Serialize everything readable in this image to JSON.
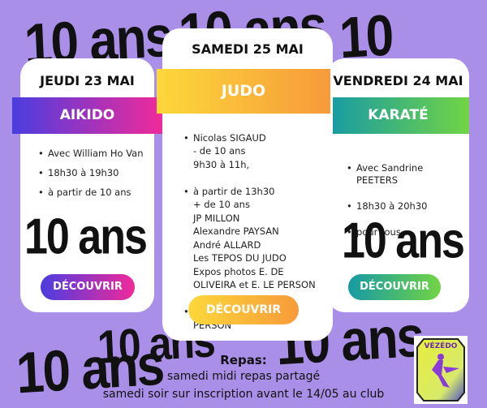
{
  "decor_text": "10 ans",
  "cards": [
    {
      "day": "JEUDI 23 MAI",
      "title": "AIKIDO",
      "items": [
        "Avec William Ho Van",
        "18h30 à 19h30",
        "à partir de 10 ans"
      ],
      "button": "DÉCOUVRIR",
      "gradient": [
        "#4a3de0",
        "#f02a9a"
      ]
    },
    {
      "day": "SAMEDI 25 MAI",
      "title": "JUDO",
      "items": [
        "Nicolas SIGAUD\n - de 10 ans\n 9h30 à 11h,",
        "à partir de 13h30\n+ de 10 ans\nJP MILLON\nAlexandre PAYSAN\nAndré ALLARD\nLes TEPOS DU JUDO\nExpos photos E. DE\nOLIVEIRA et E. LE PERSON",
        "17h30 mondo de E. LE\nPERSON"
      ],
      "button": "DÉCOUVRIR",
      "gradient": [
        "#fcd83a",
        "#f79a3a"
      ]
    },
    {
      "day": "VENDREDI 24 MAI",
      "title": "KARATÉ",
      "items": [
        "Avec Sandrine\nPEETERS",
        "18h30 à 20h30",
        "pour tous"
      ],
      "button": "DÉCOUVRIR",
      "gradient": [
        "#169aa6",
        "#72d444"
      ]
    }
  ],
  "repas": {
    "title": "Repas:",
    "line1": "samedi midi repas partagé",
    "line2": "samedi soir sur inscription avant le 14/05 au club"
  },
  "logo": {
    "text": "VÉZÉDO"
  }
}
